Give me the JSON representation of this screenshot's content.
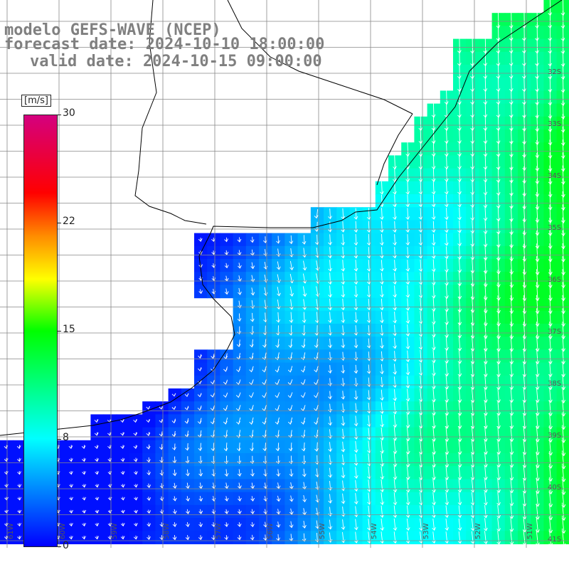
{
  "titles": {
    "line1": "modelo GEFS-WAVE (NCEP)",
    "line2": "forecast date: 2024-10-10 18:00:00",
    "line3": "valid date: 2024-10-15 09:00:00"
  },
  "colorbar": {
    "unit": "[m/s]",
    "ticks": [
      {
        "value": 30,
        "label": "30"
      },
      {
        "value": 22,
        "label": "22"
      },
      {
        "value": 15,
        "label": "15"
      },
      {
        "value": 8,
        "label": "8"
      },
      {
        "value": 0,
        "label": "0"
      }
    ],
    "color_stops": [
      "#0000ff",
      "#00ffff",
      "#00ff00",
      "#ffff00",
      "#ff8c00",
      "#ff0000",
      "#d4007f"
    ]
  },
  "map": {
    "lat_labels": [
      "32S",
      "33S",
      "34S",
      "35S",
      "36S",
      "37S",
      "38S",
      "39S",
      "40S",
      "41S"
    ],
    "lon_labels": [
      "61W",
      "60W",
      "59W",
      "58W",
      "57W",
      "56W",
      "55W",
      "54W",
      "53W",
      "52W",
      "51W"
    ],
    "land_color": "#ffffff",
    "coastline_color": "#000000",
    "grid_color": "#888888",
    "arrow_color": "#ffffff"
  }
}
